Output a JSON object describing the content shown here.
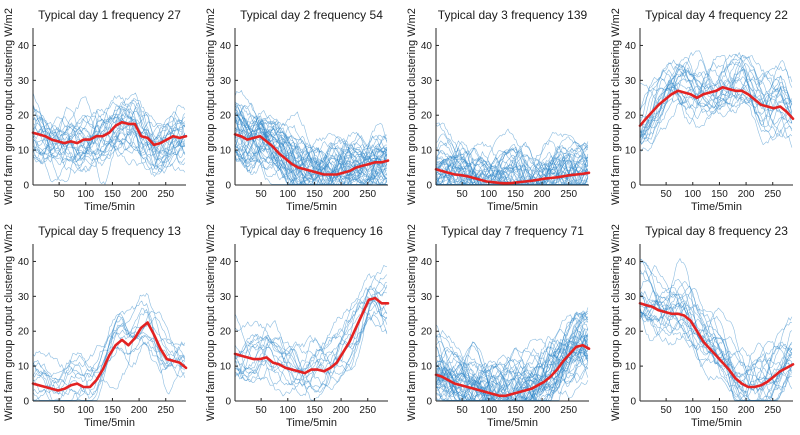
{
  "figure": {
    "colors": {
      "samples": "#2f86c9",
      "center": "#e32222",
      "axis": "#262626"
    }
  },
  "chart_data": [
    {
      "type": "line",
      "title": "Typical day 1 frequency 27",
      "xlabel": "Time/5min",
      "ylabel": "Wind farm group output clustering W/m2",
      "xlim": [
        1,
        288
      ],
      "ylim": [
        0,
        45
      ],
      "xticks": [
        50,
        100,
        150,
        200,
        250
      ],
      "yticks": [
        0,
        10,
        20,
        30,
        40
      ],
      "series": [
        {
          "role": "cluster-center",
          "x": [
            1,
            12,
            24,
            36,
            48,
            60,
            72,
            84,
            96,
            108,
            120,
            132,
            144,
            156,
            168,
            180,
            192,
            204,
            216,
            228,
            240,
            252,
            264,
            276,
            288
          ],
          "values": [
            15,
            14.5,
            14,
            13,
            12.5,
            12,
            12.5,
            12,
            13,
            13,
            14,
            14,
            15,
            17,
            18,
            17.5,
            17.5,
            14,
            13.5,
            11.5,
            12,
            13,
            14,
            13.5,
            14
          ]
        }
      ],
      "sample_count": 27
    },
    {
      "type": "line",
      "title": "Typical day 2 frequency 54",
      "xlabel": "Time/5min",
      "ylabel": "Wind farm group output clustering W/m2",
      "xlim": [
        1,
        288
      ],
      "ylim": [
        0,
        45
      ],
      "xticks": [
        50,
        100,
        150,
        200,
        250
      ],
      "yticks": [
        0,
        10,
        20,
        30,
        40
      ],
      "series": [
        {
          "role": "cluster-center",
          "x": [
            1,
            12,
            24,
            36,
            48,
            60,
            72,
            84,
            96,
            108,
            120,
            132,
            144,
            156,
            168,
            180,
            192,
            204,
            216,
            228,
            240,
            252,
            264,
            276,
            288
          ],
          "values": [
            14.5,
            14,
            13,
            13.5,
            14,
            12.5,
            11,
            9,
            7.5,
            6,
            5,
            4.5,
            4,
            3.5,
            3,
            3,
            3,
            3.5,
            4,
            5,
            5.5,
            6,
            6.5,
            6.5,
            7
          ]
        }
      ],
      "sample_count": 54
    },
    {
      "type": "line",
      "title": "Typical day 3 frequency 139",
      "xlabel": "Time/5min",
      "ylabel": "Wind farm group output clustering W/m2",
      "xlim": [
        1,
        288
      ],
      "ylim": [
        0,
        45
      ],
      "xticks": [
        50,
        100,
        150,
        200,
        250
      ],
      "yticks": [
        0,
        10,
        20,
        30,
        40
      ],
      "series": [
        {
          "role": "cluster-center",
          "x": [
            1,
            12,
            24,
            36,
            48,
            60,
            72,
            84,
            96,
            108,
            120,
            132,
            144,
            156,
            168,
            180,
            192,
            204,
            216,
            228,
            240,
            252,
            264,
            276,
            288
          ],
          "values": [
            4.5,
            4,
            3.5,
            3,
            2.8,
            2.5,
            2,
            1.5,
            1,
            0.8,
            0.6,
            0.5,
            0.6,
            0.8,
            1,
            1.2,
            1.5,
            1.8,
            2,
            2.2,
            2.5,
            2.8,
            3,
            3.2,
            3.5
          ]
        }
      ],
      "sample_count": 139
    },
    {
      "type": "line",
      "title": "Typical day 4 frequency 22",
      "xlabel": "Time/5min",
      "ylabel": "Wind farm group output clustering W/m2",
      "xlim": [
        1,
        288
      ],
      "ylim": [
        0,
        45
      ],
      "xticks": [
        50,
        100,
        150,
        200,
        250
      ],
      "yticks": [
        0,
        10,
        20,
        30,
        40
      ],
      "series": [
        {
          "role": "cluster-center",
          "x": [
            1,
            12,
            24,
            36,
            48,
            60,
            72,
            84,
            96,
            108,
            120,
            132,
            144,
            156,
            168,
            180,
            192,
            204,
            216,
            228,
            240,
            252,
            264,
            276,
            288
          ],
          "values": [
            17,
            19,
            21,
            23,
            24.5,
            26,
            27,
            26.5,
            26,
            25,
            26,
            26.5,
            27,
            28,
            27.5,
            27,
            27,
            26,
            24.5,
            23,
            22.5,
            22,
            22.5,
            21,
            19
          ]
        }
      ],
      "sample_count": 22
    },
    {
      "type": "line",
      "title": "Typical day 5 frequency 13",
      "xlabel": "Time/5min",
      "ylabel": "Wind farm group output clustering W/m2",
      "xlim": [
        1,
        288
      ],
      "ylim": [
        0,
        45
      ],
      "xticks": [
        50,
        100,
        150,
        200,
        250
      ],
      "yticks": [
        0,
        10,
        20,
        30,
        40
      ],
      "series": [
        {
          "role": "cluster-center",
          "x": [
            1,
            12,
            24,
            36,
            48,
            60,
            72,
            84,
            96,
            108,
            120,
            132,
            144,
            156,
            168,
            180,
            192,
            204,
            216,
            228,
            240,
            252,
            264,
            276,
            288
          ],
          "values": [
            5,
            4.5,
            4,
            3.5,
            3,
            3.5,
            4.5,
            5,
            4,
            4,
            6,
            9,
            13,
            16,
            17.5,
            16,
            18,
            21,
            22.5,
            19,
            15,
            12,
            11.5,
            11,
            9.5
          ]
        }
      ],
      "sample_count": 13
    },
    {
      "type": "line",
      "title": "Typical day 6 frequency 16",
      "xlabel": "Time/5min",
      "ylabel": "Wind farm group output clustering W/m2",
      "xlim": [
        1,
        288
      ],
      "ylim": [
        0,
        45
      ],
      "xticks": [
        50,
        100,
        150,
        200,
        250
      ],
      "yticks": [
        0,
        10,
        20,
        30,
        40
      ],
      "series": [
        {
          "role": "cluster-center",
          "x": [
            1,
            12,
            24,
            36,
            48,
            60,
            72,
            84,
            96,
            108,
            120,
            132,
            144,
            156,
            168,
            180,
            192,
            204,
            216,
            228,
            240,
            252,
            264,
            276,
            288
          ],
          "values": [
            13.5,
            13,
            12.5,
            12,
            12,
            12.5,
            11,
            10.5,
            9.5,
            9,
            8.5,
            8,
            9,
            9,
            8.5,
            9.5,
            11,
            14,
            17,
            21,
            25,
            29,
            29.5,
            28,
            28
          ]
        }
      ],
      "sample_count": 16
    },
    {
      "type": "line",
      "title": "Typical day 7 frequency 71",
      "xlabel": "Time/5min",
      "ylabel": "Wind farm group output clustering W/m2",
      "xlim": [
        1,
        288
      ],
      "ylim": [
        0,
        45
      ],
      "xticks": [
        50,
        100,
        150,
        200,
        250
      ],
      "yticks": [
        0,
        10,
        20,
        30,
        40
      ],
      "series": [
        {
          "role": "cluster-center",
          "x": [
            1,
            12,
            24,
            36,
            48,
            60,
            72,
            84,
            96,
            108,
            120,
            132,
            144,
            156,
            168,
            180,
            192,
            204,
            216,
            228,
            240,
            252,
            264,
            276,
            288
          ],
          "values": [
            7.5,
            7,
            6,
            5,
            4.5,
            4,
            3.5,
            3,
            2.5,
            2,
            1.5,
            1.5,
            2,
            2.5,
            3,
            3.5,
            4.5,
            5.5,
            7,
            9,
            11.5,
            13.5,
            15.5,
            16,
            15
          ]
        }
      ],
      "sample_count": 71
    },
    {
      "type": "line",
      "title": "Typical day 8 frequency 23",
      "xlabel": "Time/5min",
      "ylabel": "Wind farm group output clustering W/m2",
      "xlim": [
        1,
        288
      ],
      "ylim": [
        0,
        45
      ],
      "xticks": [
        50,
        100,
        150,
        200,
        250
      ],
      "yticks": [
        0,
        10,
        20,
        30,
        40
      ],
      "series": [
        {
          "role": "cluster-center",
          "x": [
            1,
            12,
            24,
            36,
            48,
            60,
            72,
            84,
            96,
            108,
            120,
            132,
            144,
            156,
            168,
            180,
            192,
            204,
            216,
            228,
            240,
            252,
            264,
            276,
            288
          ],
          "values": [
            28,
            27.5,
            27,
            26,
            25.5,
            25,
            25,
            24.5,
            23,
            20,
            17,
            15,
            13,
            11,
            9,
            6.5,
            5,
            4,
            4,
            4.5,
            5.5,
            7,
            8.5,
            9.5,
            10.5
          ]
        }
      ],
      "sample_count": 23
    }
  ]
}
